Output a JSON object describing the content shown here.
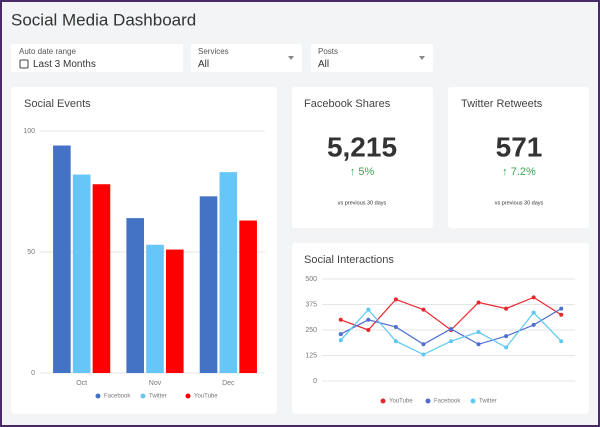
{
  "header": {
    "title": "Social Media Dashboard"
  },
  "filters": [
    {
      "label": "Auto date range",
      "value": "Last 3 Months"
    },
    {
      "label": "Services",
      "value": "All"
    },
    {
      "label": "Posts",
      "value": "All"
    }
  ],
  "kpis": [
    {
      "title": "Facebook Shares",
      "value": "5,215",
      "change": "↑ 5%",
      "note": "vs previous 30 days"
    },
    {
      "title": "Twitter Retweets",
      "value": "571",
      "change": "↑ 7.2%",
      "note": "vs previous 30 days"
    }
  ],
  "chart_data": [
    {
      "type": "bar",
      "title": "Social Events",
      "categories": [
        "Oct",
        "Nov",
        "Dec"
      ],
      "series": [
        {
          "name": "Facebook",
          "color": "#4472c4",
          "values": [
            94,
            64,
            73
          ]
        },
        {
          "name": "Twitter",
          "color": "#66c6f7",
          "values": [
            82,
            53,
            83
          ]
        },
        {
          "name": "YouTube",
          "color": "#ff0000",
          "values": [
            78,
            51,
            63
          ]
        }
      ],
      "ylim": [
        0,
        100
      ],
      "yticks": [
        0,
        50,
        100
      ],
      "grid": true,
      "legend": "bottom"
    },
    {
      "type": "line",
      "title": "Social Interactions",
      "categories": [
        null,
        null,
        null,
        null,
        null,
        null,
        null,
        null,
        null
      ],
      "series": [
        {
          "name": "YouTube",
          "color": "#e8262d",
          "values": [
            300,
            250,
            400,
            350,
            250,
            385,
            355,
            410,
            325
          ]
        },
        {
          "name": "Facebook",
          "color": "#4f6fcf",
          "values": [
            230,
            300,
            265,
            180,
            255,
            180,
            220,
            275,
            355
          ]
        },
        {
          "name": "Twitter",
          "color": "#5cc8f5",
          "values": [
            200,
            350,
            195,
            130,
            195,
            240,
            165,
            335,
            195
          ]
        }
      ],
      "ylim": [
        0,
        500
      ],
      "yticks": [
        0,
        125,
        250,
        375,
        500
      ],
      "grid": true,
      "legend": "bottom"
    }
  ]
}
